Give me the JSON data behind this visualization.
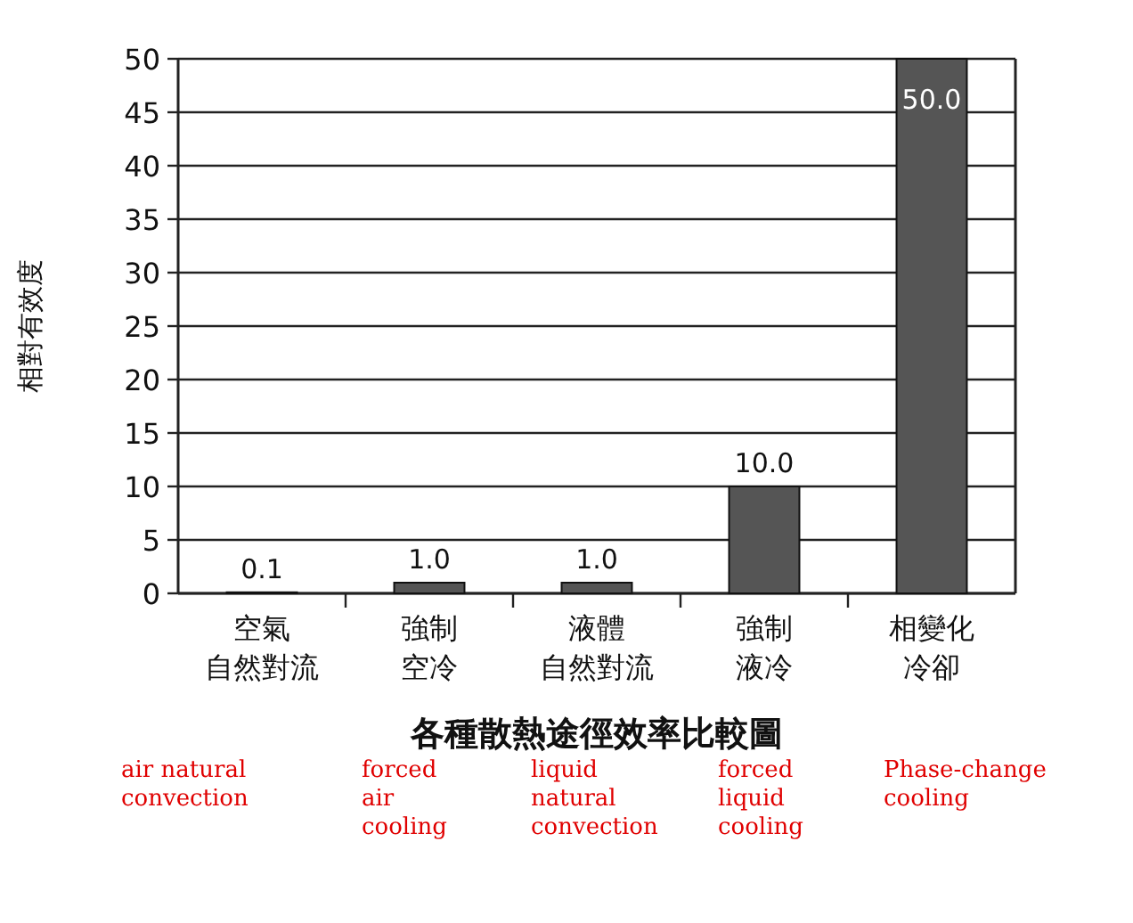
{
  "chart_data": {
    "type": "bar",
    "xlabel": "各種散熱途徑效率比較圖",
    "ylabel": "相對有效度",
    "categories": [
      "空氣自然對流",
      "強制空冷",
      "液體自然對流",
      "強制液冷",
      "相變化冷卻"
    ],
    "values": [
      0.1,
      1.0,
      1.0,
      10.0,
      50.0
    ],
    "value_labels": [
      "0.1",
      "1.0",
      "1.0",
      "10.0",
      "50.0"
    ],
    "color": "#555555",
    "ylim": [
      0,
      50
    ],
    "yticks": [
      0,
      5,
      10,
      15,
      20,
      25,
      30,
      35,
      40,
      45,
      50
    ],
    "grid": "y",
    "annotations": [
      "air natural\nconvection",
      "forced\nair\ncooling",
      "liquid\nnatural\nconvection",
      "forced\nliquid\ncooling",
      "Phase-change\ncooling"
    ]
  }
}
